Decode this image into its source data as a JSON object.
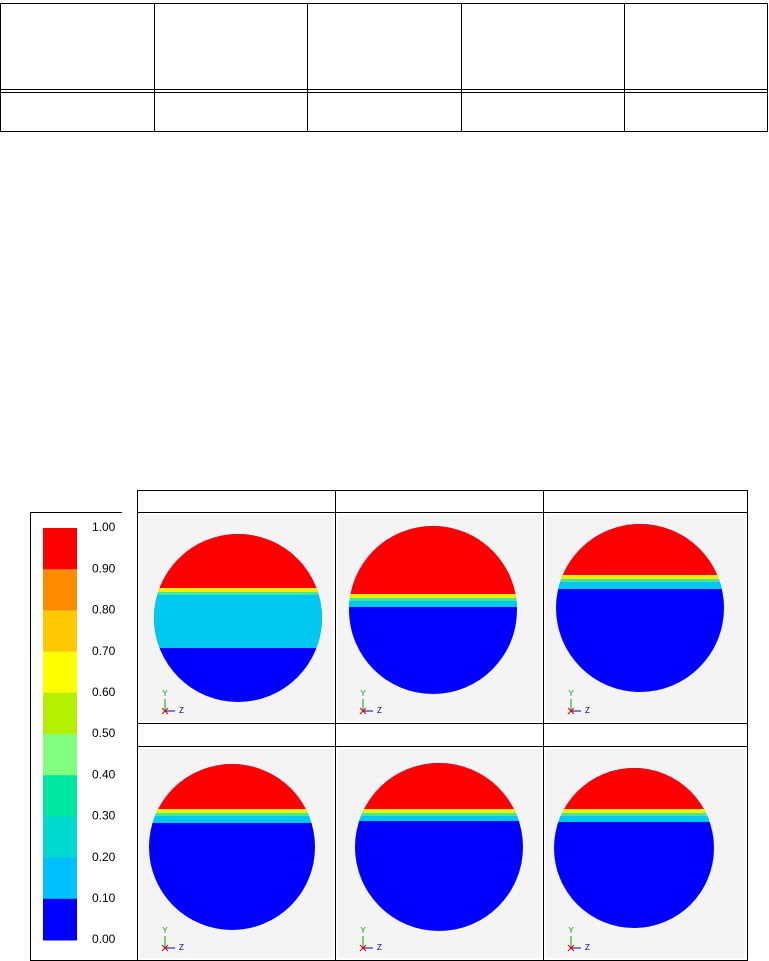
{
  "legend": {
    "labels": [
      "1.00",
      "0.90",
      "0.80",
      "0.70",
      "0.60",
      "0.50",
      "0.40",
      "0.30",
      "0.20",
      "0.10",
      "0.00"
    ]
  },
  "triad": {
    "y_label": "Y",
    "z_label": "Z"
  }
}
